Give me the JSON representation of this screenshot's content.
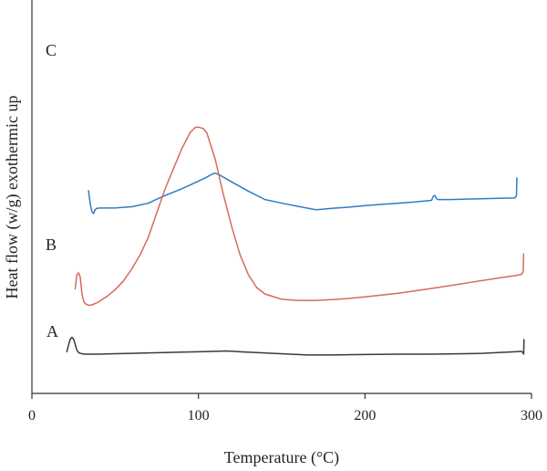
{
  "chart_data": {
    "type": "line",
    "title": "",
    "xlabel": "Temperature (°C)",
    "ylabel": "Heat flow (w/g) exothermic up",
    "xlim": [
      0,
      300
    ],
    "xticks": [
      0,
      100,
      200,
      300
    ],
    "y_ticks_shown": false,
    "grid": false,
    "legend": "none",
    "curve_labels": [
      {
        "text": "C",
        "series": "C"
      },
      {
        "text": "B",
        "series": "B"
      },
      {
        "text": "A",
        "series": "A"
      }
    ],
    "series": [
      {
        "key": "C",
        "color": "#2d7dc5",
        "x": [
          34,
          35,
          36,
          37,
          38,
          39,
          41,
          45,
          50,
          60,
          70,
          75,
          80,
          90,
          100,
          105,
          108,
          110,
          112,
          115,
          120,
          130,
          140,
          150,
          160,
          165,
          170,
          172,
          175,
          180,
          190,
          200,
          210,
          220,
          230,
          240,
          241,
          242,
          243,
          244,
          245,
          250,
          260,
          270,
          280,
          290,
          291,
          291.2
        ],
        "y": [
          4.4,
          4.08,
          3.88,
          3.83,
          3.93,
          3.96,
          3.97,
          3.97,
          3.97,
          4.0,
          4.09,
          4.19,
          4.28,
          4.45,
          4.64,
          4.74,
          4.81,
          4.84,
          4.81,
          4.74,
          4.62,
          4.39,
          4.18,
          4.09,
          4.01,
          3.97,
          3.93,
          3.93,
          3.94,
          3.96,
          3.99,
          4.03,
          4.06,
          4.09,
          4.12,
          4.16,
          4.26,
          4.28,
          4.2,
          4.18,
          4.18,
          4.18,
          4.19,
          4.2,
          4.21,
          4.22,
          4.28,
          4.72
        ]
      },
      {
        "key": "B",
        "color": "#d76a5a",
        "x": [
          26,
          27,
          28,
          29,
          30,
          31,
          32,
          34,
          36,
          40,
          45,
          50,
          55,
          60,
          65,
          70,
          75,
          80,
          85,
          90,
          95,
          98,
          100,
          103,
          105,
          110,
          115,
          120,
          125,
          130,
          135,
          140,
          150,
          160,
          170,
          180,
          190,
          200,
          220,
          240,
          260,
          280,
          290,
          294,
          295,
          295.3
        ],
        "y": [
          1.95,
          2.3,
          2.35,
          2.25,
          1.85,
          1.65,
          1.58,
          1.54,
          1.55,
          1.62,
          1.76,
          1.93,
          2.15,
          2.45,
          2.8,
          3.25,
          3.85,
          4.45,
          4.95,
          5.45,
          5.85,
          5.98,
          5.99,
          5.95,
          5.85,
          5.2,
          4.3,
          3.5,
          2.8,
          2.3,
          1.98,
          1.82,
          1.69,
          1.66,
          1.66,
          1.68,
          1.71,
          1.75,
          1.84,
          1.96,
          2.09,
          2.22,
          2.28,
          2.31,
          2.38,
          2.82
        ]
      },
      {
        "key": "A",
        "color": "#3a3a3a",
        "x": [
          21,
          22,
          23,
          24,
          25,
          26,
          27,
          28,
          29,
          30,
          32,
          35,
          40,
          50,
          60,
          70,
          80,
          90,
          100,
          110,
          117,
          125,
          135,
          145,
          155,
          160,
          165,
          170,
          180,
          200,
          220,
          240,
          260,
          270,
          280,
          290,
          294,
          295,
          295.3,
          295.5
        ],
        "y": [
          0.38,
          0.55,
          0.69,
          0.74,
          0.7,
          0.56,
          0.42,
          0.36,
          0.34,
          0.33,
          0.32,
          0.32,
          0.32,
          0.33,
          0.34,
          0.35,
          0.36,
          0.37,
          0.38,
          0.39,
          0.4,
          0.38,
          0.36,
          0.34,
          0.32,
          0.31,
          0.3,
          0.3,
          0.3,
          0.31,
          0.32,
          0.32,
          0.33,
          0.34,
          0.36,
          0.38,
          0.39,
          0.35,
          0.32,
          0.68
        ]
      }
    ]
  }
}
